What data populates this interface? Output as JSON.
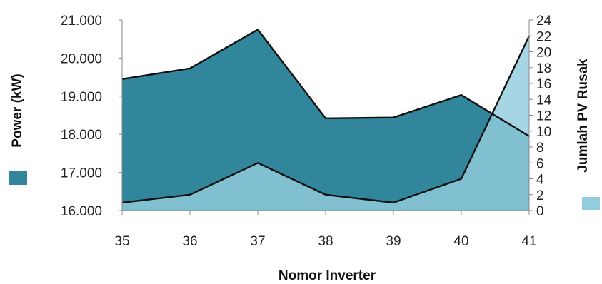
{
  "chart_data": {
    "type": "area",
    "xlabel": "Nomor Inverter",
    "ylabel_left": "Power (kW)",
    "ylabel_right": "Jumlah PV Rusak",
    "categories": [
      "35",
      "36",
      "37",
      "38",
      "39",
      "40",
      "41"
    ],
    "y_left": {
      "min": 16000,
      "max": 21000,
      "ticks": [
        16000,
        17000,
        18000,
        19000,
        20000,
        21000
      ],
      "tick_labels": [
        "16.000",
        "17.000",
        "18.000",
        "19.000",
        "20.000",
        "21.000"
      ]
    },
    "y_right": {
      "min": 0,
      "max": 24,
      "ticks": [
        0,
        2,
        4,
        6,
        8,
        10,
        12,
        14,
        16,
        18,
        20,
        22,
        24
      ],
      "tick_labels": [
        "0",
        "2",
        "4",
        "6",
        "8",
        "10",
        "12",
        "14",
        "16",
        "18",
        "20",
        "22",
        "24"
      ]
    },
    "series": [
      {
        "axis": "left",
        "values": [
          19450,
          19730,
          20750,
          18420,
          18440,
          19030,
          17950
        ],
        "color": "#31869B"
      },
      {
        "axis": "right",
        "values": [
          1,
          2,
          6,
          2,
          1,
          4,
          22
        ],
        "color": "#93CDDD"
      }
    ],
    "legend": "left and right of plot",
    "grid": false
  }
}
